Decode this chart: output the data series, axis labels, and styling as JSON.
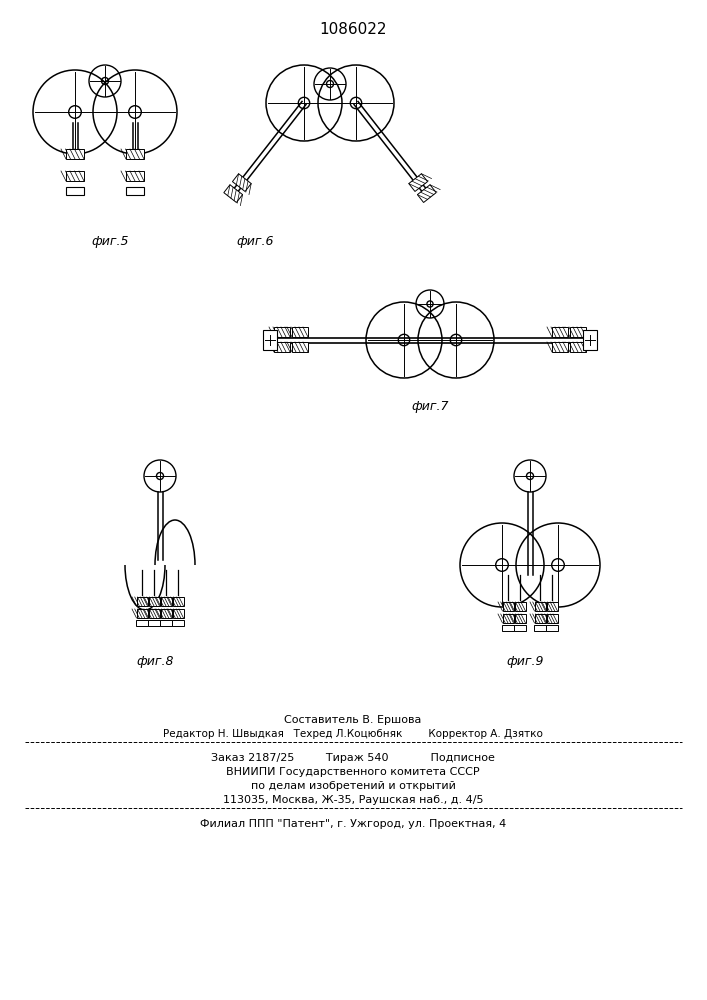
{
  "title": "1086022",
  "footer_line1": "Составитель В. Ершова",
  "footer_line2": "Редактор Н. Швыдкая   Техред Л.Коцюбняк        Корректор А. Дзятко",
  "footer_line3": "Заказ 2187/25         Тираж 540            Подписное",
  "footer_line4": "ВНИИПИ Государственного комитета СССР",
  "footer_line5": "по делам изобретений и открытий",
  "footer_line6": "113035, Москва, Ж-35, Раушская наб., д. 4/5",
  "footer_line7": "Филиал ППП \"Патент\", г. Ужгород, ул. Проектная, 4",
  "bg_color": "#ffffff",
  "line_color": "#000000"
}
